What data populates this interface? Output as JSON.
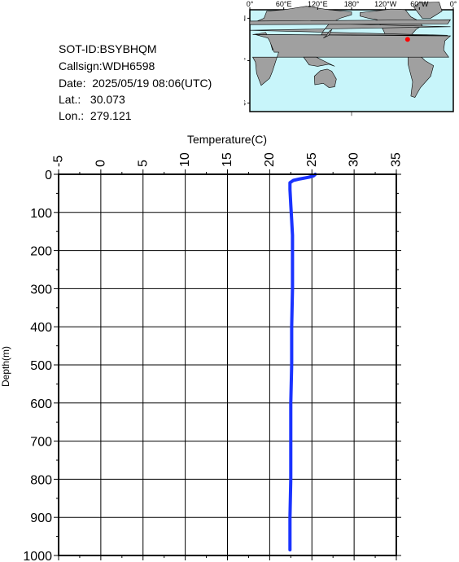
{
  "info": {
    "sot_id": "SOT-ID:BSYBHQM",
    "callsign": "Callsign:WDH6598",
    "date": "Date:  2025/05/19 08:06(UTC)",
    "lat": "Lat.:   30.073",
    "lon": "Lon.:  279.121"
  },
  "map": {
    "lon_labels": [
      "0°",
      "60°E",
      "120°E",
      "180°",
      "120°W",
      "60°W",
      "0°"
    ],
    "lat_labels": [
      "60°N",
      "0°",
      "60°S"
    ],
    "ocean_color": "#c8f5fa",
    "land_color": "#a0a0a0",
    "marker": {
      "lon": 279.121,
      "lat": 30.073,
      "color": "#ff0000"
    }
  },
  "chart_data": {
    "type": "line",
    "xlabel": "Temperature(C)",
    "ylabel": "Depth(m)",
    "xlim": [
      -5,
      35
    ],
    "ylim": [
      0,
      1000
    ],
    "y_inverted": true,
    "x_ticks": [
      -5,
      0,
      5,
      10,
      15,
      20,
      25,
      30,
      35
    ],
    "y_ticks": [
      0,
      100,
      200,
      300,
      400,
      500,
      600,
      700,
      800,
      900,
      1000
    ],
    "grid": true,
    "series": [
      {
        "color": "#1a33ff",
        "points": [
          [
            25.4,
            0
          ],
          [
            25.2,
            4
          ],
          [
            24.6,
            8
          ],
          [
            23.6,
            12
          ],
          [
            22.8,
            16
          ],
          [
            22.4,
            22
          ],
          [
            22.4,
            40
          ],
          [
            22.5,
            80
          ],
          [
            22.6,
            120
          ],
          [
            22.7,
            160
          ],
          [
            22.7,
            200
          ],
          [
            22.7,
            300
          ],
          [
            22.6,
            400
          ],
          [
            22.6,
            500
          ],
          [
            22.5,
            600
          ],
          [
            22.5,
            700
          ],
          [
            22.5,
            800
          ],
          [
            22.4,
            900
          ],
          [
            22.4,
            985
          ]
        ]
      }
    ]
  }
}
